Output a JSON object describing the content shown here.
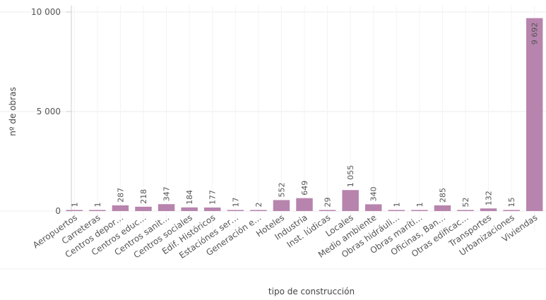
{
  "chart_data": {
    "type": "bar",
    "xlabel": "tipo de construcción",
    "ylabel": "nº de obras",
    "ylim": [
      0,
      10000
    ],
    "yticks": [
      0,
      5000,
      10000
    ],
    "ytick_labels": [
      "0",
      "5 000",
      "10 000"
    ],
    "grid": true,
    "bar_color": "#b784ad",
    "categories": [
      "Aeropuertos",
      "Carreteras",
      "Centros depor…",
      "Centros educ…",
      "Centros sanit…",
      "Centros sociales",
      "Edif. Históricos",
      "Estaciónes ser…",
      "Generación e…",
      "Hoteles",
      "Industria",
      "Inst. lúdicas",
      "Locales",
      "Medio ambiente",
      "Obras hidráuli…",
      "Obras maríti…",
      "Oficinas, Ban…",
      "Otras edificac…",
      "Transportes",
      "Urbanizaciones",
      "Viviendas"
    ],
    "values": [
      1,
      1,
      287,
      218,
      347,
      184,
      177,
      17,
      2,
      552,
      649,
      29,
      1055,
      340,
      1,
      1,
      285,
      52,
      132,
      15,
      9692
    ],
    "value_labels": [
      "1",
      "1",
      "287",
      "218",
      "347",
      "184",
      "177",
      "17",
      "2",
      "552",
      "649",
      "29",
      "1 055",
      "340",
      "1",
      "1",
      "285",
      "52",
      "132",
      "15",
      "9 692"
    ]
  }
}
